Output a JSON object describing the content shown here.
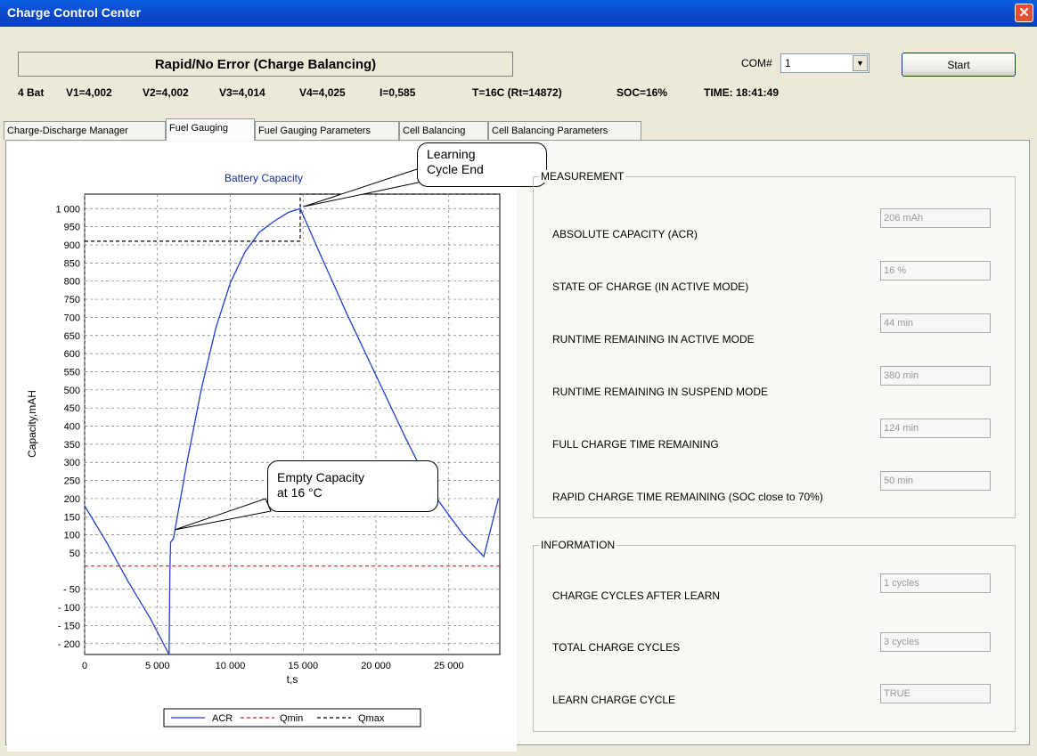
{
  "window": {
    "title": "Charge Control Center"
  },
  "status": {
    "mode_text": "Rapid/No Error (Charge Balancing)"
  },
  "com": {
    "label": "COM#",
    "value": "1"
  },
  "start_label": "Start",
  "readings": {
    "bat": "4 Bat",
    "v1": "V1=4,002",
    "v2": "V2=4,002",
    "v3": "V3=4,014",
    "v4": "V4=4,025",
    "i": "I=0,585",
    "t": "T=16C (Rt=14872)",
    "soc": "SOC=16%",
    "time": "TIME: 18:41:49"
  },
  "tabs": [
    {
      "label": "Charge-Discharge Manager"
    },
    {
      "label": "Fuel Gauging"
    },
    {
      "label": "Fuel Gauging Parameters"
    },
    {
      "label": "Cell Balancing"
    },
    {
      "label": "Cell Balancing Parameters"
    }
  ],
  "measurement": {
    "title": "MEASUREMENT",
    "fields": [
      {
        "label": "ABSOLUTE CAPACITY (ACR)",
        "value": "206 mAh"
      },
      {
        "label": "STATE OF CHARGE (IN ACTIVE MODE)",
        "value": "16 %"
      },
      {
        "label": "RUNTIME REMAINING IN ACTIVE MODE",
        "value": "44 min"
      },
      {
        "label": "RUNTIME REMAINING IN SUSPEND MODE",
        "value": "380 min"
      },
      {
        "label": "FULL CHARGE TIME REMAINING",
        "value": "124 min"
      },
      {
        "label": "RAPID CHARGE TIME REMAINING (SOC close to 70%)",
        "value": "50 min"
      }
    ]
  },
  "information": {
    "title": "INFORMATION",
    "fields": [
      {
        "label": "CHARGE CYCLES AFTER LEARN",
        "value": "1 cycles"
      },
      {
        "label": "TOTAL CHARGE CYCLES",
        "value": "3 cycles"
      },
      {
        "label": "LEARN CHARGE CYCLE",
        "value": "TRUE"
      }
    ]
  },
  "callouts": {
    "learning_line1": "Learning",
    "learning_line2": "Cycle End",
    "empty_line1": "Empty Capacity",
    "empty_line2": "at 16 °C"
  },
  "chart_data": {
    "type": "line",
    "title": "Battery Capacity",
    "xlabel": "t,s",
    "ylabel": "Capacity,mAH",
    "xlim": [
      0,
      28500
    ],
    "ylim": [
      -230,
      1040
    ],
    "xticks": [
      0,
      5000,
      10000,
      15000,
      20000,
      25000
    ],
    "xtick_labels": [
      "0",
      "5 000",
      "10 000",
      "15 000",
      "20 000",
      "25 000"
    ],
    "yticks": [
      -200,
      -150,
      -100,
      -50,
      50,
      100,
      150,
      200,
      250,
      300,
      350,
      400,
      450,
      500,
      550,
      600,
      650,
      700,
      750,
      800,
      850,
      900,
      950,
      1000
    ],
    "ytick_labels": [
      "- 200",
      "- 150",
      "- 100",
      "- 50",
      "50",
      "100",
      "150",
      "200",
      "250",
      "300",
      "350",
      "400",
      "450",
      "500",
      "550",
      "600",
      "650",
      "700",
      "750",
      "800",
      "850",
      "900",
      "950",
      "1 000"
    ],
    "grid": true,
    "legend_position": "bottom",
    "series": [
      {
        "name": "ACR",
        "color": "#1f3fcc",
        "style": "solid",
        "x": [
          0,
          1500,
          3000,
          4500,
          5800,
          5850,
          5900,
          6100,
          7000,
          8000,
          9000,
          10000,
          11000,
          12000,
          13000,
          14000,
          14800,
          16000,
          18000,
          20000,
          22000,
          24000,
          26000,
          27400,
          28400
        ],
        "y": [
          180,
          80,
          -30,
          -130,
          -230,
          0,
          80,
          90,
          295,
          500,
          670,
          795,
          880,
          935,
          965,
          990,
          1000,
          890,
          710,
          540,
          370,
          210,
          100,
          40,
          200
        ]
      },
      {
        "name": "Qmin",
        "color": "#cc2222",
        "style": "dashed",
        "x": [
          0,
          28500
        ],
        "y": [
          14,
          14
        ]
      },
      {
        "name": "Qmax",
        "color": "#000000",
        "style": "dashed",
        "x": [
          0,
          14800,
          14800,
          14800,
          28500
        ],
        "y": [
          910,
          910,
          1000,
          1040,
          1040
        ]
      }
    ]
  }
}
